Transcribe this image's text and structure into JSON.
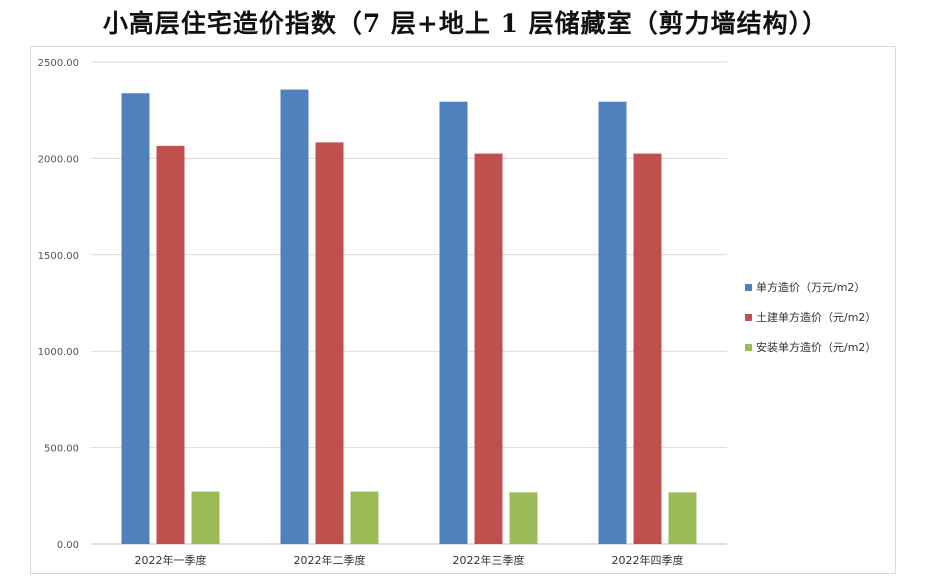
{
  "chart_data": {
    "type": "bar",
    "title": "小高层住宅造价指数（7 层+地上 1 层储藏室（剪力墙结构））",
    "categories": [
      "2022年一季度",
      "2022年二季度",
      "2022年三季度",
      "2022年四季度"
    ],
    "series": [
      {
        "name": "单方造价（万元/m2）",
        "color": "#4f81bd",
        "values": [
          2338,
          2357,
          2294,
          2294
        ]
      },
      {
        "name": "土建单方造价（元/m2）",
        "color": "#c0504d",
        "values": [
          2065,
          2083,
          2025,
          2025
        ]
      },
      {
        "name": "安装单方造价（元/m2）",
        "color": "#9bbb59",
        "values": [
          272,
          272,
          268,
          268
        ]
      }
    ],
    "y_ticks": [
      "0.00",
      "500.00",
      "1000.00",
      "1500.00",
      "2000.00",
      "2500.00"
    ],
    "ylim": [
      0,
      2500
    ],
    "grid": true,
    "legend_position": "right"
  }
}
